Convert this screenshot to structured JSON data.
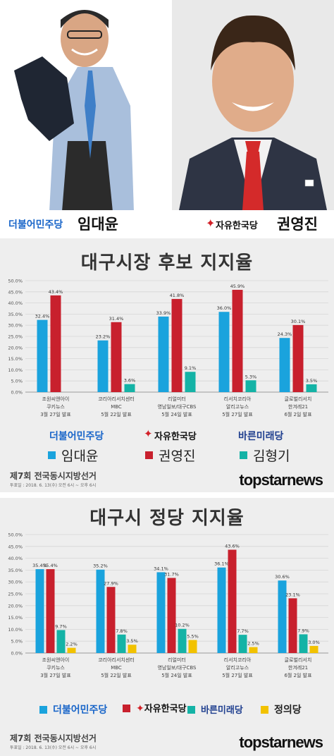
{
  "header": {
    "left_party": "더불어민주당",
    "left_name": "임대윤",
    "right_party": "자유한국당",
    "right_name": "권영진"
  },
  "section1": {
    "footer_title": "제7회 전국동시지방선거",
    "footer_sub": "투표일 : 2018. 6. 13(수) 오전 6시 ~ 오후 6시",
    "brand": "topstarnews",
    "legend_parties": [
      "더불어민주당",
      "자유한국당",
      "바른미래당"
    ]
  },
  "section2": {
    "footer_title": "제7회 전국동시지방선거",
    "footer_sub": "투표일 : 2018. 6. 13(수) 오전 6시 ~ 오후 6시",
    "brand": "topstarnews"
  },
  "chart_data": [
    {
      "type": "bar",
      "title": "대구시장 후보 지지율",
      "ylim": [
        0,
        50
      ],
      "yticks": [
        "0.0%",
        "5.0%",
        "10.0%",
        "15.0%",
        "20.0%",
        "25.0%",
        "30.0%",
        "35.0%",
        "40.0%",
        "45.0%",
        "50.0%"
      ],
      "categories": [
        [
          "조원씨앤아이",
          "쿠키뉴스",
          "3월 27일 발표"
        ],
        [
          "코리아리서치센터",
          "MBC",
          "5월 22일 발표"
        ],
        [
          "리얼미터",
          "영남일보/대구CBS",
          "5월 24일 발표"
        ],
        [
          "리서치코리아",
          "알리고뉴스",
          "5월 27일 발표"
        ],
        [
          "글로벌리서치",
          "한겨레21",
          "6월 2일 발표"
        ]
      ],
      "series": [
        {
          "name": "임대윤",
          "color": "#1aa3dd",
          "values": [
            32.4,
            23.2,
            33.9,
            36.0,
            24.3
          ],
          "labels": [
            "32.4%",
            "23.2%",
            "33.9%",
            "36.0%",
            "24.3%"
          ]
        },
        {
          "name": "권영진",
          "color": "#c8202d",
          "values": [
            43.4,
            31.4,
            41.8,
            45.9,
            30.1
          ],
          "labels": [
            "43.4%",
            "31.4%",
            "41.8%",
            "45.9%",
            "30.1%"
          ]
        },
        {
          "name": "김형기",
          "color": "#14b3a6",
          "values": [
            null,
            3.6,
            9.1,
            5.3,
            3.5
          ],
          "labels": [
            null,
            "3.6%",
            "9.1%",
            "5.3%",
            "3.5%"
          ]
        }
      ]
    },
    {
      "type": "bar",
      "title": "대구시 정당 지지율",
      "ylim": [
        0,
        50
      ],
      "yticks": [
        "0.0%",
        "5.0%",
        "10.0%",
        "15.0%",
        "20.0%",
        "25.0%",
        "30.0%",
        "35.0%",
        "40.0%",
        "45.0%",
        "50.0%"
      ],
      "categories": [
        [
          "조원씨앤아이",
          "쿠키뉴스",
          "3월 27일 발표"
        ],
        [
          "코리아리서치센터",
          "MBC",
          "5월 22일 발표"
        ],
        [
          "리얼미터",
          "영남일보/대구CBS",
          "5월 24일 발표"
        ],
        [
          "리서치코리아",
          "알리고뉴스",
          "5월 27일 발표"
        ],
        [
          "글로벌리서치",
          "한겨레21",
          "6월 2일 발표"
        ]
      ],
      "series": [
        {
          "name": "더불어민주당",
          "color": "#1aa3dd",
          "values": [
            35.4,
            35.2,
            34.1,
            36.1,
            30.6
          ],
          "labels": [
            "35.4%",
            "35.2%",
            "34.1%",
            "36.1%",
            "30.6%"
          ]
        },
        {
          "name": "자유한국당",
          "color": "#c8202d",
          "values": [
            35.4,
            27.9,
            31.7,
            43.6,
            23.1
          ],
          "labels": [
            "35.4%",
            "27.9%",
            "31.7%",
            "43.6%",
            "23.1%"
          ]
        },
        {
          "name": "바른미래당",
          "color": "#14b3a6",
          "values": [
            9.7,
            7.8,
            10.2,
            7.7,
            7.9
          ],
          "labels": [
            "9.7%",
            "7.8%",
            "10.2%",
            "7.7%",
            "7.9%"
          ]
        },
        {
          "name": "정의당",
          "color": "#f2c200",
          "values": [
            2.2,
            3.5,
            5.5,
            2.5,
            3.0
          ],
          "labels": [
            "2.2%",
            "3.5%",
            "5.5%",
            "2.5%",
            "3.0%"
          ]
        }
      ]
    }
  ]
}
